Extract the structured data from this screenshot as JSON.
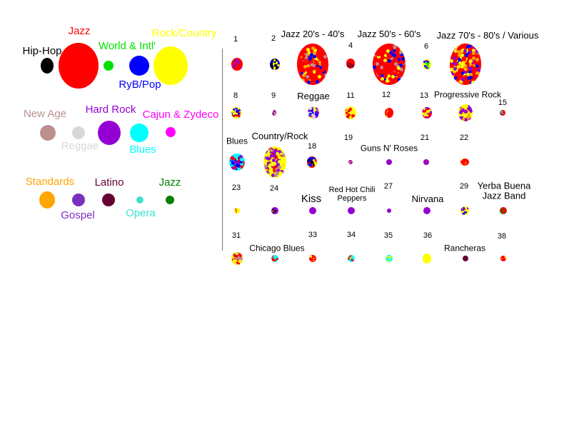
{
  "legend": [
    {
      "label": "Hip-Hop",
      "color": "#000000"
    },
    {
      "label": "Jazz",
      "color": "#ff0000"
    },
    {
      "label": "World & Intl'",
      "color": "#00e000"
    },
    {
      "label": "RyB/Pop",
      "color": "#0000ff"
    },
    {
      "label": "Rock/Country",
      "color": "#ffff00"
    },
    {
      "label": "New Age",
      "color": "#bc8f8f"
    },
    {
      "label": "Reggae",
      "color": "#d8d8d8"
    },
    {
      "label": "Hard Rock",
      "color": "#9400d3"
    },
    {
      "label": "Blues",
      "color": "#00ffff"
    },
    {
      "label": "Cajun & Zydeco",
      "color": "#ff00ff"
    },
    {
      "label": "Standards",
      "color": "#ffa500"
    },
    {
      "label": "Gospel",
      "color": "#7b2fbe"
    },
    {
      "label": "Latino",
      "color": "#660033"
    },
    {
      "label": "Opera",
      "color": "#40e0d0"
    },
    {
      "label": "Jazz",
      "color": "#008000"
    }
  ],
  "clusters": [
    {
      "label": "1",
      "colors": [
        "#ff0000",
        "#ff0000",
        "#9400d3"
      ]
    },
    {
      "label": "2",
      "colors": [
        "#0000ff",
        "#000000",
        "#ffff00"
      ]
    },
    {
      "label": "Jazz 20's - 40's",
      "colors": [
        "#ff0000",
        "#ff0000",
        "#ff0000",
        "#ff0000",
        "#ffa500",
        "#ffff00",
        "#0000ff",
        "#bc8f8f"
      ]
    },
    {
      "label": "4",
      "colors": [
        "#ff0000",
        "#ff0000",
        "#660033"
      ]
    },
    {
      "label": "Jazz 50's - 60's",
      "colors": [
        "#ff0000",
        "#ff0000",
        "#ff0000",
        "#ff0000",
        "#ffff00",
        "#0000ff",
        "#bc8f8f"
      ]
    },
    {
      "label": "6",
      "colors": [
        "#ffff00",
        "#9400d3",
        "#00e000",
        "#0000ff"
      ]
    },
    {
      "label": "Jazz 70's - 80's / Various",
      "colors": [
        "#ff0000",
        "#ffff00",
        "#0000ff",
        "#9400d3",
        "#ffa500"
      ]
    },
    {
      "label": "8",
      "colors": [
        "#ffff00",
        "#ff0000",
        "#0000ff"
      ]
    },
    {
      "label": "9",
      "colors": [
        "#9400d3",
        "#ffff00"
      ]
    },
    {
      "label": "Reggae",
      "colors": [
        "#d8d8d8",
        "#d8d8d8",
        "#ffff00",
        "#9400d3",
        "#0000ff"
      ]
    },
    {
      "label": "11",
      "colors": [
        "#ffff00",
        "#ffff00",
        "#ff0000"
      ]
    },
    {
      "label": "12",
      "colors": [
        "#ff0000",
        "#ff0000",
        "#ffa500"
      ]
    },
    {
      "label": "13",
      "colors": [
        "#9400d3",
        "#ffff00",
        "#ff0000"
      ]
    },
    {
      "label": "Progressive Rock",
      "colors": [
        "#ffff00",
        "#9400d3",
        "#ffa500"
      ]
    },
    {
      "label": "15",
      "colors": [
        "#ff0000",
        "#00ffff",
        "#0000ff"
      ]
    },
    {
      "label": "Blues",
      "colors": [
        "#00ffff",
        "#ff0000",
        "#0000ff",
        "#9400d3"
      ]
    },
    {
      "label": "Country/Rock",
      "colors": [
        "#ffff00",
        "#ffff00",
        "#ffff00",
        "#ff0000",
        "#9400d3",
        "#bc8f8f"
      ]
    },
    {
      "label": "18",
      "colors": [
        "#ff0000",
        "#0000ff",
        "#000000",
        "#ffff00"
      ]
    },
    {
      "label": "19",
      "colors": [
        "#9400d3",
        "#ffa500"
      ]
    },
    {
      "label": "Guns N' Roses",
      "colors": [
        "#9400d3"
      ]
    },
    {
      "label": "21",
      "colors": [
        "#9400d3",
        "#ff0000"
      ]
    },
    {
      "label": "22",
      "colors": [
        "#ff0000",
        "#ffa500"
      ]
    },
    {
      "label": "23",
      "colors": [
        "#ffff00",
        "#ff0000"
      ]
    },
    {
      "label": "24",
      "colors": [
        "#9400d3",
        "#000000",
        "#ffa500"
      ]
    },
    {
      "label": "Kiss",
      "colors": [
        "#9400d3"
      ]
    },
    {
      "label": "Red Hot Chili Peppers",
      "colors": [
        "#9400d3"
      ]
    },
    {
      "label": "27",
      "colors": [
        "#9400d3"
      ]
    },
    {
      "label": "Nirvana",
      "colors": [
        "#9400d3"
      ]
    },
    {
      "label": "29",
      "colors": [
        "#ffff00",
        "#0000ff",
        "#9400d3"
      ]
    },
    {
      "label": "Yerba Buena Jazz Band",
      "colors": [
        "#ff0000",
        "#008000"
      ]
    },
    {
      "label": "31",
      "colors": [
        "#ffff00",
        "#ff0000",
        "#bc8f8f"
      ]
    },
    {
      "label": "Chicago Blues",
      "colors": [
        "#00ffff",
        "#ff0000"
      ]
    },
    {
      "label": "33",
      "colors": [
        "#ff0000",
        "#ffff00"
      ]
    },
    {
      "label": "34",
      "colors": [
        "#00ffff",
        "#ffff00",
        "#ff0000"
      ]
    },
    {
      "label": "35",
      "colors": [
        "#00ffff",
        "#ffff00"
      ]
    },
    {
      "label": "36",
      "colors": [
        "#ffff00"
      ]
    },
    {
      "label": "Rancheras",
      "colors": [
        "#660033"
      ]
    },
    {
      "label": "38",
      "colors": [
        "#ff0000",
        "#ffa500"
      ]
    }
  ]
}
